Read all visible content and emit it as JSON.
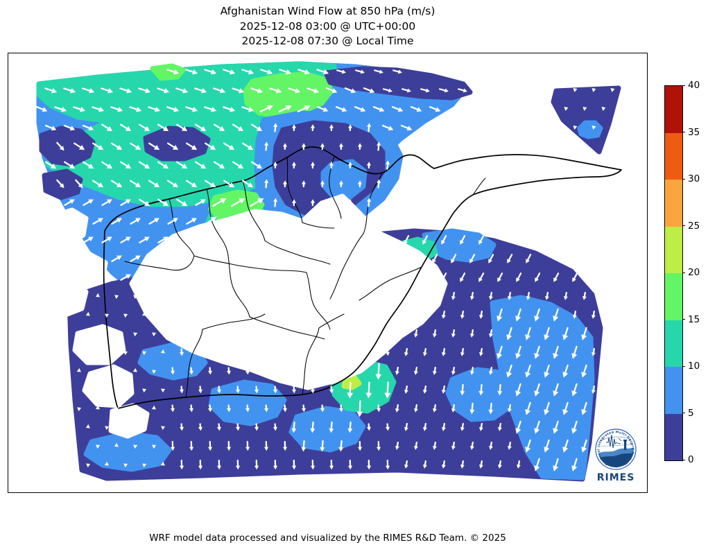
{
  "title": {
    "line1": "Afghanistan Wind Flow at 850 hPa (m/s)",
    "line2": "2025-12-08 03:00 @ UTC+00:00",
    "line3": "2025-12-08 07:30 @ Local Time"
  },
  "footer": "WRF model data processed and visualized by the RIMES R&D Team. © 2025",
  "colorbar": {
    "ticks": [
      0,
      5,
      10,
      15,
      20,
      25,
      30,
      35,
      40
    ],
    "segment_colors_bottom_to_top": [
      "#3d3e99",
      "#4293f0",
      "#26d7ac",
      "#63f565",
      "#bdee45",
      "#fca43d",
      "#ee5c12",
      "#b01206"
    ],
    "min": 0,
    "max": 40
  },
  "map": {
    "region": "Afghanistan",
    "palette": {
      "indigo_0_5": "#3d3e99",
      "blue_5_10": "#4293f0",
      "teal_10_15": "#26d7ac",
      "green_15_20": "#63f565",
      "yellowgreen_20_25": "#bdee45",
      "masked": "#ffffff",
      "boundary": "#000000",
      "arrow": "#ffffff"
    }
  },
  "logo": {
    "name": "RIMES",
    "ring_text": "Regional Integrated Multi-Hazard Early Warning System"
  }
}
